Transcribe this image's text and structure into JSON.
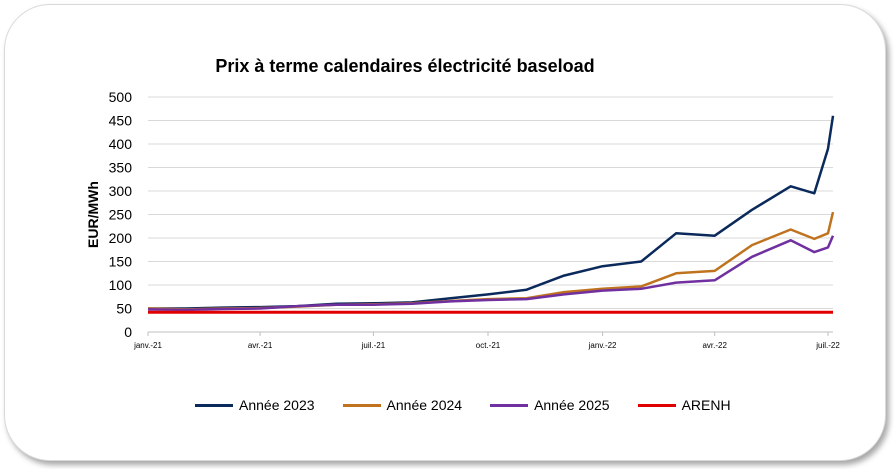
{
  "chart_data": {
    "type": "line",
    "title": "Prix à terme calendaires électricité baseload",
    "ylabel": "EUR/MWh",
    "xlabel": "",
    "ylim": [
      0,
      500
    ],
    "yticks": [
      0,
      50,
      100,
      150,
      200,
      250,
      300,
      350,
      400,
      450,
      500
    ],
    "xticks": [
      "janv.-21",
      "avr.-21",
      "juil.-21",
      "oct.-21",
      "janv.-22",
      "avr.-22",
      "juil.-22"
    ],
    "x_months": [
      "2021-01",
      "2021-02",
      "2021-03",
      "2021-04",
      "2021-05",
      "2021-06",
      "2021-07",
      "2021-08",
      "2021-09",
      "2021-10",
      "2021-11",
      "2021-12",
      "2022-01",
      "2022-02",
      "2022-03",
      "2022-04",
      "2022-05",
      "2022-06",
      "2022-07"
    ],
    "grid": true,
    "legend_position": "bottom",
    "series": [
      {
        "name": "Année 2023",
        "color": "#0b2a5c",
        "points": [
          [
            "2021-01",
            50
          ],
          [
            "2021-02",
            50
          ],
          [
            "2021-03",
            52
          ],
          [
            "2021-04",
            53
          ],
          [
            "2021-05",
            55
          ],
          [
            "2021-06",
            60
          ],
          [
            "2021-07",
            61
          ],
          [
            "2021-08",
            63
          ],
          [
            "2021-09",
            72
          ],
          [
            "2021-10",
            80
          ],
          [
            "2021-11",
            90
          ],
          [
            "2021-12",
            120
          ],
          [
            "2022-01",
            140
          ],
          [
            "2022-02",
            150
          ],
          [
            "2022-03",
            210
          ],
          [
            "2022-04",
            205
          ],
          [
            "2022-05",
            260
          ],
          [
            "2022-06",
            310
          ],
          [
            "2022-06-20",
            295
          ],
          [
            "2022-07",
            390
          ],
          [
            "2022-07-05",
            460
          ]
        ]
      },
      {
        "name": "Année 2024",
        "color": "#c0731f",
        "points": [
          [
            "2021-01",
            50
          ],
          [
            "2021-02",
            48
          ],
          [
            "2021-03",
            50
          ],
          [
            "2021-04",
            51
          ],
          [
            "2021-05",
            54
          ],
          [
            "2021-06",
            58
          ],
          [
            "2021-07",
            59
          ],
          [
            "2021-08",
            61
          ],
          [
            "2021-09",
            66
          ],
          [
            "2021-10",
            70
          ],
          [
            "2021-11",
            72
          ],
          [
            "2021-12",
            85
          ],
          [
            "2022-01",
            92
          ],
          [
            "2022-02",
            97
          ],
          [
            "2022-03",
            125
          ],
          [
            "2022-04",
            130
          ],
          [
            "2022-05",
            185
          ],
          [
            "2022-06",
            218
          ],
          [
            "2022-06-20",
            198
          ],
          [
            "2022-07",
            210
          ],
          [
            "2022-07-05",
            255
          ]
        ]
      },
      {
        "name": "Année 2025",
        "color": "#7030a0",
        "points": [
          [
            "2021-01",
            48
          ],
          [
            "2021-02",
            47
          ],
          [
            "2021-03",
            49
          ],
          [
            "2021-04",
            50
          ],
          [
            "2021-05",
            55
          ],
          [
            "2021-06",
            58
          ],
          [
            "2021-07",
            58
          ],
          [
            "2021-08",
            60
          ],
          [
            "2021-09",
            65
          ],
          [
            "2021-10",
            68
          ],
          [
            "2021-11",
            70
          ],
          [
            "2021-12",
            80
          ],
          [
            "2022-01",
            88
          ],
          [
            "2022-02",
            92
          ],
          [
            "2022-03",
            105
          ],
          [
            "2022-04",
            110
          ],
          [
            "2022-05",
            160
          ],
          [
            "2022-06",
            195
          ],
          [
            "2022-06-20",
            170
          ],
          [
            "2022-07",
            180
          ],
          [
            "2022-07-05",
            205
          ]
        ]
      },
      {
        "name": "ARENH",
        "color": "#e00000",
        "points": [
          [
            "2021-01",
            42
          ],
          [
            "2022-07-05",
            42
          ]
        ]
      }
    ]
  }
}
